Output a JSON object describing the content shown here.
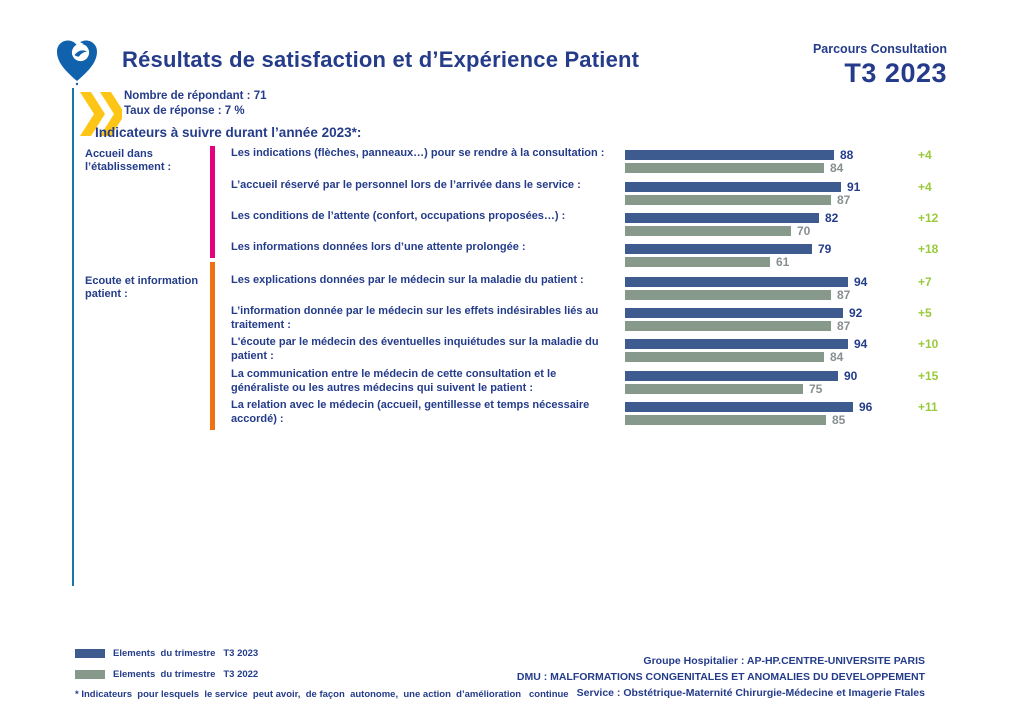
{
  "header": {
    "title": "Résultats de satisfaction et d’Expérience Patient",
    "program": "Parcours Consultation",
    "period": "T3 2023",
    "respondents": "Nombre de répondant : 71",
    "response_rate": "Taux de réponse : 7 %"
  },
  "section_heading": "Indicateurs à suivre durant l’année 2023*:",
  "chart_data": {
    "type": "bar",
    "orientation": "horizontal",
    "xlim": [
      0,
      100
    ],
    "series_names": [
      "T3 2023",
      "T3 2022"
    ],
    "groups": [
      {
        "category": "Accueil dans l’établissement :",
        "accent_color": "#e5007d",
        "rows": [
          {
            "label": "Les indications (flèches, panneaux…) pour se rendre à la consultation :",
            "current": 88,
            "previous": 84,
            "delta": "+4"
          },
          {
            "label": "L’accueil réservé par le personnel lors de l’arrivée dans le service :",
            "current": 91,
            "previous": 87,
            "delta": "+4"
          },
          {
            "label": "Les conditions de l’attente (confort, occupations proposées…) :",
            "current": 82,
            "previous": 70,
            "delta": "+12"
          },
          {
            "label": "Les informations données lors d’une attente prolongée :",
            "current": 79,
            "previous": 61,
            "delta": "+18"
          }
        ]
      },
      {
        "category": "Ecoute et information patient :",
        "accent_color": "#ee7112",
        "rows": [
          {
            "label": "Les explications données par le médecin sur la maladie du patient :",
            "current": 94,
            "previous": 87,
            "delta": "+7"
          },
          {
            "label": "L’information donnée par le médecin sur les effets indésirables liés au traitement :",
            "current": 92,
            "previous": 87,
            "delta": "+5"
          },
          {
            "label": "L'écoute par le médecin des éventuelles inquiétudes sur la maladie du patient :",
            "current": 94,
            "previous": 84,
            "delta": "+10"
          },
          {
            "label": "La communication entre le médecin de cette consultation et le généraliste ou les autres médecins qui suivent le patient :",
            "current": 90,
            "previous": 75,
            "delta": "+15"
          },
          {
            "label": "La relation avec le médecin (accueil, gentillesse et temps nécessaire accordé) :",
            "current": 96,
            "previous": 85,
            "delta": "+11"
          }
        ]
      }
    ]
  },
  "legend": {
    "items": [
      {
        "label": "Elements  du trimestre   T3 2023",
        "series": "T3 2023"
      },
      {
        "label": "Elements  du trimestre   T3 2022",
        "series": "T3 2022"
      }
    ]
  },
  "footnote": "* Indicateurs  pour lesquels  le service  peut avoir,  de façon  autonome,  une action  d’amélioration   continue",
  "footer": {
    "line1": "Groupe Hospitalier : AP-HP.CENTRE-UNIVERSITE PARIS",
    "line2": "DMU : MALFORMATIONS CONGENITALES ET ANOMALIES DU DEVELOPPEMENT",
    "line3": "Service : Obstétrique-Maternité Chirurgie-Médecine et Imagerie Ftales"
  },
  "colors": {
    "navy_text": "#243c8a",
    "bar_current": "#3d5b8e",
    "bar_previous": "#87998a",
    "previous_value_text": "#878f91",
    "delta_green": "#9aca3c",
    "accent_pink": "#e5007d",
    "accent_orange": "#ee7112",
    "chevron_yellow": "#fdc515",
    "rule_blue": "#1a74b0",
    "logo_blue": "#1062ad"
  },
  "icons": {
    "logo": "heart-logo-icon",
    "chevrons": "double-chevron-icon"
  }
}
